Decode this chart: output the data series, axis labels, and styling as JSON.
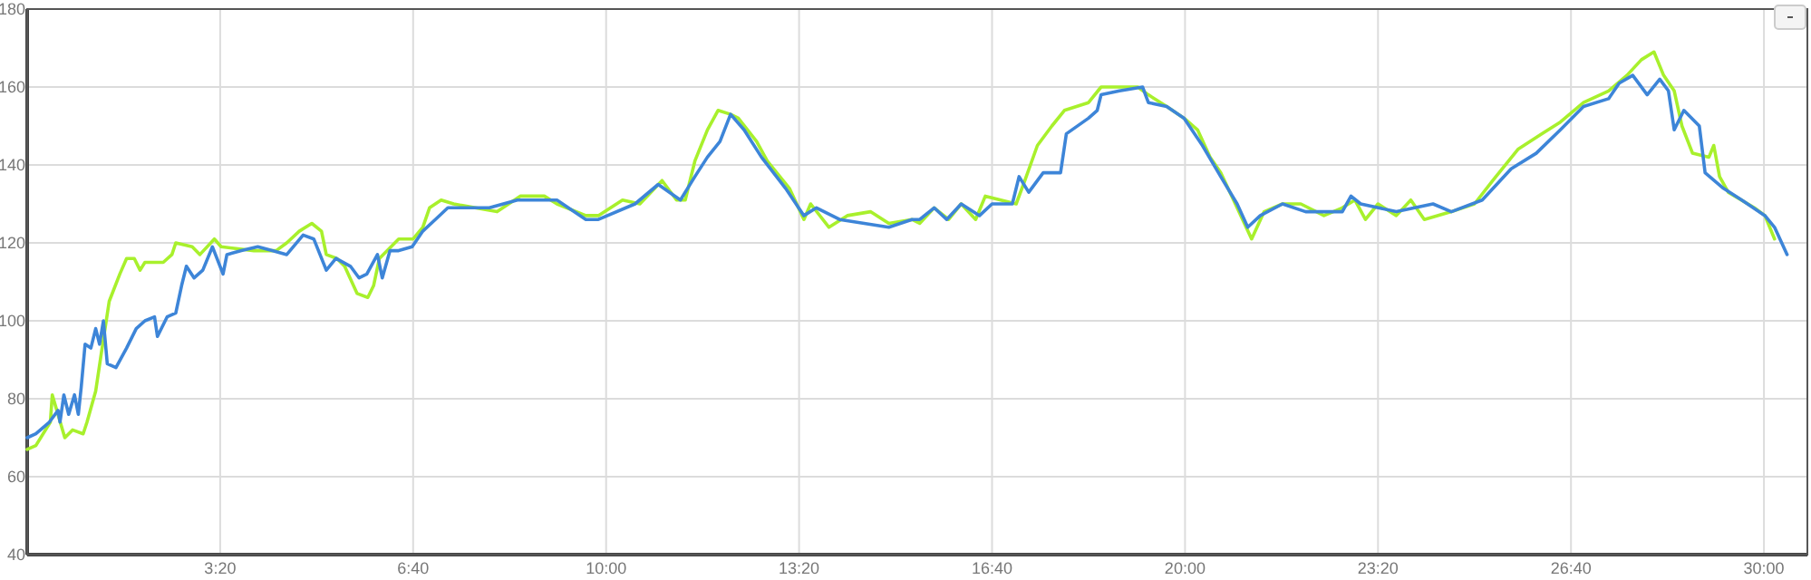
{
  "chart_data": {
    "type": "line",
    "xlim": [
      0,
      1845
    ],
    "ylim": [
      40,
      180
    ],
    "xticks": [
      {
        "value": 200,
        "label": "3:20"
      },
      {
        "value": 400,
        "label": "6:40"
      },
      {
        "value": 600,
        "label": "10:00"
      },
      {
        "value": 800,
        "label": "13:20"
      },
      {
        "value": 1000,
        "label": "16:40"
      },
      {
        "value": 1200,
        "label": "20:00"
      },
      {
        "value": 1400,
        "label": "23:20"
      },
      {
        "value": 1600,
        "label": "26:40"
      },
      {
        "value": 1800,
        "label": "30:00"
      }
    ],
    "yticks": [
      40,
      60,
      80,
      100,
      120,
      140,
      160,
      180
    ],
    "grid": true,
    "marker": "none",
    "line_style": "solid",
    "series": [
      {
        "color": "#a8f02c",
        "x": [
          0,
          9,
          24,
          26,
          39,
          47,
          58,
          62,
          71,
          77,
          85,
          96,
          103,
          111,
          117,
          122,
          141,
          150,
          154,
          171,
          179,
          194,
          201,
          235,
          258,
          269,
          282,
          295,
          305,
          310,
          321,
          329,
          342,
          353,
          359,
          365,
          385,
          400,
          410,
          417,
          429,
          442,
          487,
          511,
          536,
          549,
          579,
          592,
          617,
          635,
          658,
          673,
          682,
          692,
          705,
          716,
          729,
          737,
          756,
          767,
          790,
          805,
          812,
          831,
          850,
          874,
          893,
          917,
          925,
          940,
          955,
          968,
          983,
          993,
          1025,
          1034,
          1047,
          1062,
          1075,
          1100,
          1113,
          1151,
          1162,
          1181,
          1199,
          1213,
          1226,
          1237,
          1254,
          1269,
          1282,
          1301,
          1320,
          1344,
          1363,
          1376,
          1387,
          1400,
          1419,
          1434,
          1448,
          1476,
          1500,
          1519,
          1545,
          1570,
          1589,
          1613,
          1639,
          1658,
          1673,
          1686,
          1696,
          1707,
          1715,
          1726,
          1743,
          1748,
          1754,
          1763,
          1790,
          1801,
          1811
        ],
        "values": [
          67,
          68,
          74,
          81,
          70,
          72,
          71,
          74,
          82,
          92,
          105,
          112,
          116,
          116,
          113,
          115,
          115,
          117,
          120,
          119,
          117,
          121,
          119,
          118,
          118,
          120,
          123,
          125,
          123,
          117,
          116,
          114,
          107,
          106,
          109,
          116,
          121,
          121,
          124,
          129,
          131,
          130,
          128,
          132,
          132,
          130,
          127,
          127,
          131,
          130,
          136,
          131,
          131,
          141,
          149,
          154,
          153,
          152,
          146,
          141,
          134,
          126,
          130,
          124,
          127,
          128,
          125,
          126,
          125,
          129,
          126,
          130,
          126,
          132,
          130,
          136,
          145,
          150,
          154,
          156,
          160,
          160,
          158,
          155,
          152,
          149,
          142,
          138,
          129,
          121,
          128,
          130,
          130,
          127,
          129,
          131,
          126,
          130,
          127,
          131,
          126,
          128,
          130,
          136,
          144,
          148,
          151,
          156,
          159,
          163,
          167,
          169,
          163,
          159,
          150,
          143,
          142,
          145,
          137,
          133,
          129,
          127,
          121
        ]
      },
      {
        "color": "#3d85d8",
        "x": [
          0,
          9,
          23,
          32,
          34,
          38,
          43,
          49,
          53,
          56,
          60,
          66,
          71,
          75,
          79,
          83,
          92,
          103,
          113,
          122,
          132,
          135,
          145,
          154,
          160,
          165,
          173,
          182,
          192,
          203,
          207,
          222,
          239,
          254,
          269,
          286,
          297,
          310,
          320,
          335,
          344,
          352,
          363,
          368,
          376,
          385,
          399,
          410,
          423,
          436,
          479,
          508,
          549,
          579,
          592,
          630,
          654,
          677,
          692,
          705,
          718,
          729,
          743,
          761,
          786,
          805,
          818,
          842,
          893,
          917,
          925,
          940,
          953,
          968,
          987,
          1000,
          1021,
          1028,
          1038,
          1053,
          1071,
          1077,
          1100,
          1109,
          1113,
          1132,
          1156,
          1162,
          1181,
          1199,
          1218,
          1237,
          1254,
          1265,
          1278,
          1301,
          1325,
          1350,
          1363,
          1372,
          1382,
          1419,
          1457,
          1476,
          1508,
          1538,
          1564,
          1589,
          1613,
          1639,
          1650,
          1664,
          1679,
          1692,
          1701,
          1707,
          1717,
          1733,
          1739,
          1758,
          1777,
          1801,
          1811,
          1824
        ],
        "values": [
          70,
          71,
          74,
          77,
          74,
          81,
          76,
          81,
          76,
          83,
          94,
          93,
          98,
          94,
          100,
          89,
          88,
          93,
          98,
          100,
          101,
          96,
          101,
          102,
          109,
          114,
          111,
          113,
          119,
          112,
          117,
          118,
          119,
          118,
          117,
          122,
          121,
          113,
          116,
          114,
          111,
          112,
          117,
          111,
          118,
          118,
          119,
          123,
          126,
          129,
          129,
          131,
          131,
          126,
          126,
          130,
          135,
          131,
          137,
          142,
          146,
          153,
          149,
          142,
          134,
          127,
          129,
          126,
          124,
          126,
          126,
          129,
          126,
          130,
          127,
          130,
          130,
          137,
          133,
          138,
          138,
          148,
          152,
          154,
          158,
          159,
          160,
          156,
          155,
          152,
          145,
          137,
          130,
          124,
          127,
          130,
          128,
          128,
          128,
          132,
          130,
          128,
          130,
          128,
          131,
          139,
          143,
          149,
          155,
          157,
          161,
          163,
          158,
          162,
          159,
          149,
          154,
          150,
          138,
          134,
          131,
          127,
          124,
          117
        ]
      }
    ]
  }
}
